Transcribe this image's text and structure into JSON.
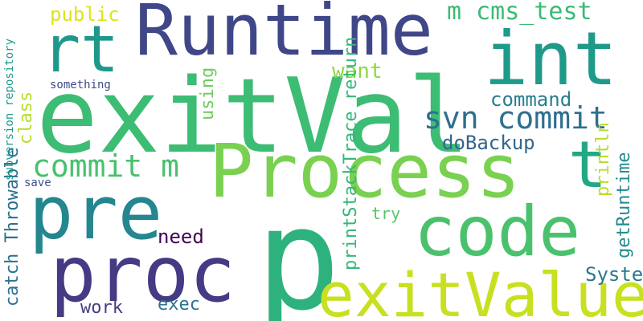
{
  "words": [
    {
      "text": "p",
      "color": "#2db27d"
    },
    {
      "text": "exitVal",
      "color": "#3dbc74"
    },
    {
      "text": "Runtime",
      "color": "#3f4788"
    },
    {
      "text": "Process",
      "color": "#7ad151"
    },
    {
      "text": "int",
      "color": "#1f9a8a"
    },
    {
      "text": "code",
      "color": "#4ac16d"
    },
    {
      "text": "exitValue",
      "color": "#c8e020"
    },
    {
      "text": "proc",
      "color": "#443b84"
    },
    {
      "text": "pre",
      "color": "#24868e"
    },
    {
      "text": "rt",
      "color": "#1f988b"
    },
    {
      "text": "t",
      "color": "#22a884"
    },
    {
      "text": "svn commit",
      "color": "#2e6f8e"
    },
    {
      "text": "commit m",
      "color": "#48c16e"
    },
    {
      "text": "m cms_test",
      "color": "#3bbb75"
    },
    {
      "text": "command",
      "color": "#287d8e"
    },
    {
      "text": "doBackup",
      "color": "#31668e"
    },
    {
      "text": "want",
      "color": "#90d743"
    },
    {
      "text": "public",
      "color": "#dde318"
    },
    {
      "text": "need",
      "color": "#440154"
    },
    {
      "text": "try",
      "color": "#56c667"
    },
    {
      "text": "System",
      "color": "#2a788e"
    },
    {
      "text": "work",
      "color": "#433e85"
    },
    {
      "text": "exec",
      "color": "#2c728e"
    },
    {
      "text": "something",
      "color": "#3e4a89"
    },
    {
      "text": "save",
      "color": "#3b528b"
    },
    {
      "text": "using",
      "color": "#6ccd5a"
    },
    {
      "text": "class",
      "color": "#b8de29"
    },
    {
      "text": "println",
      "color": "#b5de2b"
    },
    {
      "text": "getRuntime",
      "color": "#238a8d"
    },
    {
      "text": "printStackTrace return",
      "color": "#35b779"
    },
    {
      "text": "catch Throwable",
      "color": "#2d708e"
    },
    {
      "text": "subversion repository",
      "color": "#1e9b8a"
    }
  ]
}
